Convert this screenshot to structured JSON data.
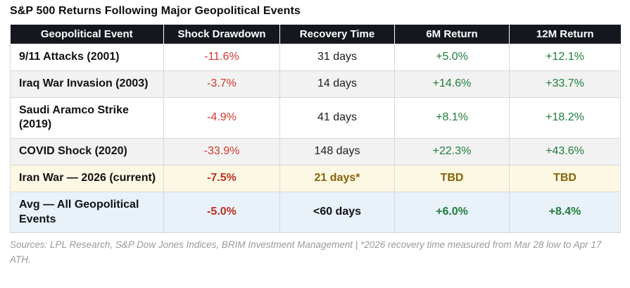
{
  "title": "S&P 500 Returns Following Major Geopolitical Events",
  "footnote": "Sources: LPL Research, S&P Dow Jones Indices, BRIM Investment Management | *2026 recovery time measured from Mar 28 low to Apr 17 ATH.",
  "chart_data": {
    "type": "table",
    "title": "S&P 500 Returns Following Major Geopolitical Events",
    "columns": [
      "Geopolitical Event",
      "Shock Drawdown",
      "Recovery Time",
      "6M Return",
      "12M Return"
    ],
    "rows": [
      [
        "9/11 Attacks (2001)",
        "-11.6%",
        "31 days",
        "+5.0%",
        "+12.1%"
      ],
      [
        "Iraq War Invasion (2003)",
        "-3.7%",
        "14 days",
        "+14.6%",
        "+33.7%"
      ],
      [
        "Saudi Aramco Strike (2019)",
        "-4.9%",
        "41 days",
        "+8.1%",
        "+18.2%"
      ],
      [
        "COVID Shock (2020)",
        "-33.9%",
        "148 days",
        "+22.3%",
        "+43.6%"
      ],
      [
        "Iran War — 2026 (current)",
        "-7.5%",
        "21 days*",
        "TBD",
        "TBD"
      ],
      [
        "Avg — All Geopolitical Events",
        "-5.0%",
        "<60 days",
        "+6.0%",
        "+8.4%"
      ]
    ],
    "row_highlights": [
      "none",
      "alt",
      "none",
      "alt",
      "current-yellow",
      "average-blue"
    ],
    "legend_position": "none",
    "grid": "cell-borders"
  },
  "colors": {
    "header_bg": "#15171f",
    "header_text": "#ffffff",
    "negative_red": "#cf3930",
    "negative_red_bold": "#bb3020",
    "positive_green": "#1e7e3c",
    "pending_gold": "#85650a",
    "current_row_bg": "#fdf8e3",
    "avg_row_bg": "#e9f1f9",
    "alt_row_bg": "#f2f2f2",
    "border": "#d8d8d8",
    "footnote_gray": "#9a9a9a"
  }
}
